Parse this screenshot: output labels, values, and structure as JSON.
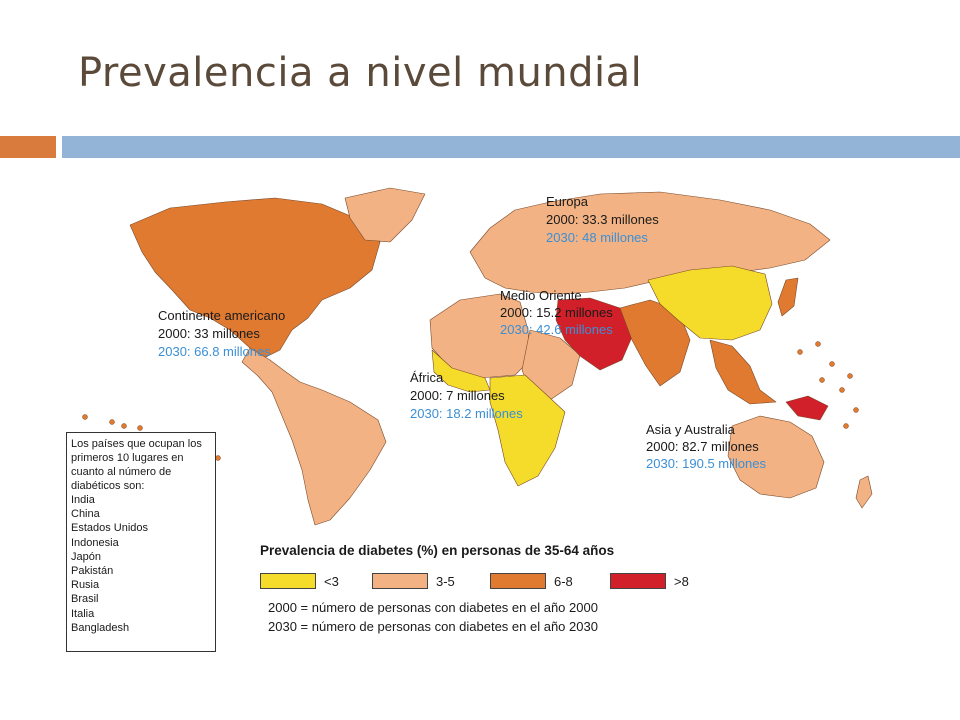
{
  "slide": {
    "title": "Prevalencia a nivel mundial"
  },
  "colors": {
    "accent_orange": "#d97b3c",
    "accent_blue": "#93b3d7"
  },
  "regions": [
    {
      "name": "Europa",
      "y2000": "2000: 33.3 millones",
      "y2030": "2030: 48 millones"
    },
    {
      "name": "Continente americano",
      "y2000": "2000: 33 millones",
      "y2030": "2030: 66.8 millones"
    },
    {
      "name": "Medio Oriente",
      "y2000": "2000: 15.2 millones",
      "y2030": "2030: 42.6 millones"
    },
    {
      "name": "África",
      "y2000": "2000: 7 millones",
      "y2030": "2030: 18.2 millones"
    },
    {
      "name": "Asia y Australia",
      "y2000": "2000: 82.7 millones",
      "y2030": "2030: 190.5 millones"
    }
  ],
  "top_countries": {
    "intro": "Los países que ocupan los primeros 10 lugares en cuanto al número de diabéticos son:",
    "items": [
      "India",
      "China",
      "Estados Unidos",
      "Indonesia",
      "Japón",
      "Pakistán",
      "Rusia",
      "Brasil",
      "Italia",
      "Bangladesh"
    ]
  },
  "legend": {
    "title": "Prevalencia de diabetes (%) en personas de 35-64 años",
    "items": [
      {
        "label": "<3",
        "color": "#f5dc2a"
      },
      {
        "label": "3-5",
        "color": "#f2b283"
      },
      {
        "label": "6-8",
        "color": "#df7a30"
      },
      {
        "label": ">8",
        "color": "#d2202a"
      }
    ],
    "notes": [
      "2000 = número de personas con diabetes en el año 2000",
      "2030 = número de personas con diabetes en el año 2030"
    ]
  }
}
